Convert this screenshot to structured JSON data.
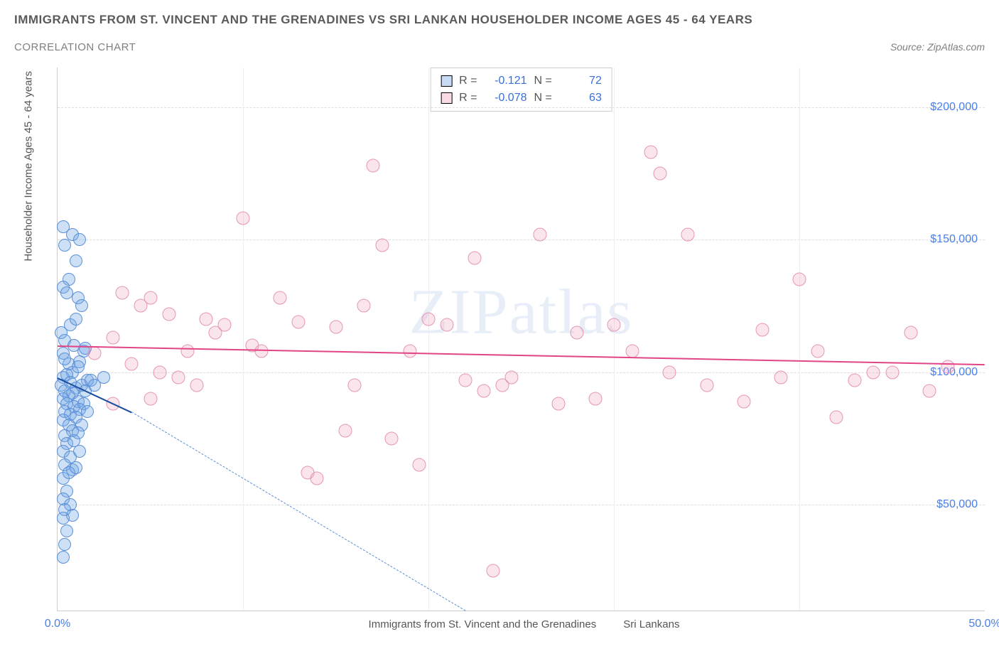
{
  "title": "IMMIGRANTS FROM ST. VINCENT AND THE GRENADINES VS SRI LANKAN HOUSEHOLDER INCOME AGES 45 - 64 YEARS",
  "subtitle": "CORRELATION CHART",
  "source": "Source: ZipAtlas.com",
  "watermark": "ZIPatlas",
  "ylabel": "Householder Income Ages 45 - 64 years",
  "chart": {
    "type": "scatter",
    "xlim": [
      0,
      50
    ],
    "ylim": [
      10000,
      215000
    ],
    "xticks": [
      {
        "v": 0,
        "l": "0.0%"
      },
      {
        "v": 50,
        "l": "50.0%"
      }
    ],
    "yticks": [
      {
        "v": 50000,
        "l": "$50,000"
      },
      {
        "v": 100000,
        "l": "$100,000"
      },
      {
        "v": 150000,
        "l": "$150,000"
      },
      {
        "v": 200000,
        "l": "$200,000"
      }
    ],
    "grid_color": "#dddddd",
    "background_color": "#ffffff",
    "series": [
      {
        "name": "Immigrants from St. Vincent and the Grenadines",
        "color_fill": "rgba(115,165,230,0.35)",
        "color_stroke": "#5a8fd8",
        "marker_size": 18,
        "R": "-0.121",
        "N": "72",
        "regression": {
          "x1": 0,
          "y1": 98000,
          "x2": 4,
          "y2": 85000,
          "dash_x2": 22,
          "dash_y2": 10000
        },
        "points": [
          [
            0.3,
            155000
          ],
          [
            0.8,
            152000
          ],
          [
            0.4,
            148000
          ],
          [
            1.2,
            150000
          ],
          [
            1.0,
            142000
          ],
          [
            0.6,
            135000
          ],
          [
            0.3,
            132000
          ],
          [
            1.1,
            128000
          ],
          [
            0.5,
            130000
          ],
          [
            1.3,
            125000
          ],
          [
            0.7,
            118000
          ],
          [
            0.2,
            115000
          ],
          [
            1.0,
            120000
          ],
          [
            0.4,
            112000
          ],
          [
            1.4,
            108000
          ],
          [
            0.3,
            107000
          ],
          [
            0.9,
            110000
          ],
          [
            1.5,
            109000
          ],
          [
            0.6,
            103000
          ],
          [
            0.4,
            105000
          ],
          [
            1.2,
            104000
          ],
          [
            0.8,
            100000
          ],
          [
            0.3,
            98000
          ],
          [
            1.1,
            102000
          ],
          [
            0.5,
            99000
          ],
          [
            1.6,
            97000
          ],
          [
            0.7,
            96000
          ],
          [
            0.2,
            95000
          ],
          [
            1.0,
            94000
          ],
          [
            1.3,
            95000
          ],
          [
            0.4,
            93000
          ],
          [
            0.8,
            92000
          ],
          [
            1.5,
            93000
          ],
          [
            0.6,
            91000
          ],
          [
            0.3,
            90000
          ],
          [
            1.1,
            89000
          ],
          [
            1.8,
            97000
          ],
          [
            2.0,
            95000
          ],
          [
            0.5,
            88000
          ],
          [
            0.9,
            87000
          ],
          [
            1.4,
            88000
          ],
          [
            0.4,
            85000
          ],
          [
            0.7,
            84000
          ],
          [
            1.2,
            86000
          ],
          [
            0.3,
            82000
          ],
          [
            1.0,
            83000
          ],
          [
            1.6,
            85000
          ],
          [
            0.6,
            80000
          ],
          [
            0.8,
            78000
          ],
          [
            1.3,
            80000
          ],
          [
            0.4,
            76000
          ],
          [
            1.1,
            77000
          ],
          [
            0.5,
            73000
          ],
          [
            0.9,
            74000
          ],
          [
            0.3,
            70000
          ],
          [
            0.7,
            68000
          ],
          [
            1.2,
            70000
          ],
          [
            0.4,
            65000
          ],
          [
            0.8,
            63000
          ],
          [
            0.3,
            60000
          ],
          [
            0.6,
            62000
          ],
          [
            1.0,
            64000
          ],
          [
            0.5,
            55000
          ],
          [
            0.3,
            52000
          ],
          [
            0.7,
            50000
          ],
          [
            0.4,
            48000
          ],
          [
            0.8,
            46000
          ],
          [
            0.3,
            45000
          ],
          [
            0.5,
            40000
          ],
          [
            0.4,
            35000
          ],
          [
            0.3,
            30000
          ],
          [
            2.5,
            98000
          ]
        ]
      },
      {
        "name": "Sri Lankans",
        "color_fill": "rgba(240,150,180,0.25)",
        "color_stroke": "#e595b5",
        "marker_size": 19,
        "R": "-0.078",
        "N": "63",
        "regression": {
          "x1": 0,
          "y1": 110000,
          "x2": 50,
          "y2": 103000
        },
        "points": [
          [
            2,
            107000
          ],
          [
            3,
            113000
          ],
          [
            3.5,
            130000
          ],
          [
            4,
            103000
          ],
          [
            4.5,
            125000
          ],
          [
            5,
            128000
          ],
          [
            5.5,
            100000
          ],
          [
            6,
            122000
          ],
          [
            6.5,
            98000
          ],
          [
            7,
            108000
          ],
          [
            8,
            120000
          ],
          [
            8.5,
            115000
          ],
          [
            9,
            118000
          ],
          [
            10,
            158000
          ],
          [
            10.5,
            110000
          ],
          [
            11,
            108000
          ],
          [
            12,
            128000
          ],
          [
            13,
            119000
          ],
          [
            13.5,
            62000
          ],
          [
            14,
            60000
          ],
          [
            15,
            117000
          ],
          [
            15.5,
            78000
          ],
          [
            16,
            95000
          ],
          [
            16.5,
            125000
          ],
          [
            17,
            178000
          ],
          [
            17.5,
            148000
          ],
          [
            18,
            75000
          ],
          [
            19,
            108000
          ],
          [
            19.5,
            65000
          ],
          [
            20,
            120000
          ],
          [
            21,
            118000
          ],
          [
            22,
            97000
          ],
          [
            22.5,
            143000
          ],
          [
            23,
            93000
          ],
          [
            23.5,
            25000
          ],
          [
            24,
            95000
          ],
          [
            24.5,
            98000
          ],
          [
            26,
            152000
          ],
          [
            27,
            88000
          ],
          [
            28,
            115000
          ],
          [
            29,
            90000
          ],
          [
            30,
            118000
          ],
          [
            31,
            108000
          ],
          [
            32,
            183000
          ],
          [
            32.5,
            175000
          ],
          [
            33,
            100000
          ],
          [
            34,
            152000
          ],
          [
            35,
            95000
          ],
          [
            37,
            89000
          ],
          [
            38,
            116000
          ],
          [
            39,
            98000
          ],
          [
            40,
            135000
          ],
          [
            41,
            108000
          ],
          [
            42,
            83000
          ],
          [
            43,
            97000
          ],
          [
            44,
            100000
          ],
          [
            45,
            100000
          ],
          [
            46,
            115000
          ],
          [
            47,
            93000
          ],
          [
            48,
            102000
          ],
          [
            5,
            90000
          ],
          [
            7.5,
            95000
          ],
          [
            3,
            88000
          ]
        ]
      }
    ]
  },
  "legend": {
    "series_a": "Immigrants from St. Vincent and the Grenadines",
    "series_b": "Sri Lankans"
  },
  "stats_labels": {
    "R": "R =",
    "N": "N ="
  }
}
